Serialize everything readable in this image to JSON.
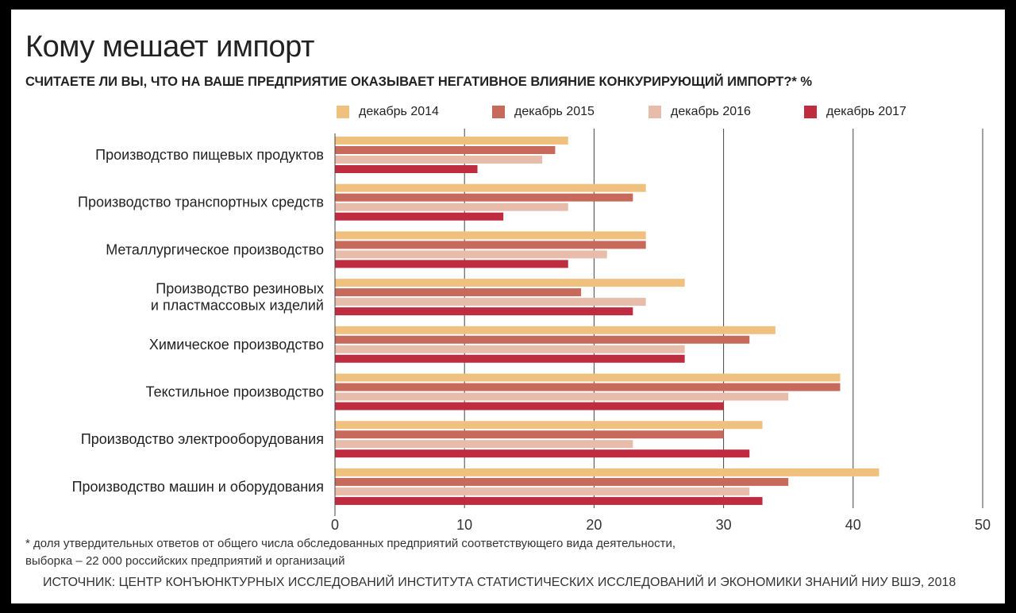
{
  "title": "Кому мешает импорт",
  "subtitle": "СЧИТАЕТЕ ЛИ ВЫ, ЧТО НА ВАШЕ ПРЕДПРИЯТИЕ ОКАЗЫВАЕТ НЕГАТИВНОЕ ВЛИЯНИЕ КОНКУРИРУЮЩИЙ ИМПОРТ?* %",
  "footnote_line1": "* доля утвердительных ответов от общего числа обследованных предприятий соответствующего вида деятельности,",
  "footnote_line2": "выборка – 22 000 российских предприятий и организаций",
  "source": "ИСТОЧНИК: ЦЕНТР КОНЪЮНКТУРНЫХ ИССЛЕДОВАНИЙ ИНСТИТУТА СТАТИСТИЧЕСКИХ ИССЛЕДОВАНИЙ И ЭКОНОМИКИ ЗНАНИЙ НИУ ВШЭ, 2018",
  "chart_data": {
    "type": "bar",
    "orientation": "horizontal",
    "title": "Кому мешает импорт",
    "subtitle": "СЧИТАЕТЕ ЛИ ВЫ, ЧТО НА ВАШЕ ПРЕДПРИЯТИЕ ОКАЗЫВАЕТ НЕГАТИВНОЕ ВЛИЯНИЕ КОНКУРИРУЮЩИЙ ИМПОРТ?* %",
    "categories": [
      [
        "Производство пищевых продуктов"
      ],
      [
        "Производство транспортных средств"
      ],
      [
        "Металлургическое производство"
      ],
      [
        "Производство резиновых",
        "и пластмассовых изделий"
      ],
      [
        "Химическое производство"
      ],
      [
        "Текстильное производство"
      ],
      [
        "Производство электрооборудования"
      ],
      [
        "Производство машин и оборудования"
      ]
    ],
    "series": [
      {
        "name": "декабрь 2014",
        "color": "#f0c07f",
        "values": [
          18,
          24,
          24,
          27,
          34,
          39,
          33,
          42
        ]
      },
      {
        "name": "декабрь 2015",
        "color": "#c76a5c",
        "values": [
          17,
          23,
          24,
          19,
          32,
          39,
          30,
          35
        ]
      },
      {
        "name": "декабрь 2016",
        "color": "#e8bcab",
        "values": [
          16,
          18,
          21,
          24,
          27,
          35,
          23,
          32
        ]
      },
      {
        "name": "декабрь 2017",
        "color": "#bf2c3f",
        "values": [
          11,
          13,
          18,
          23,
          27,
          30,
          32,
          33
        ]
      }
    ],
    "xlim": [
      0,
      50
    ],
    "xticks": [
      0,
      10,
      20,
      30,
      40,
      50
    ],
    "grid": true,
    "legend_position": "top"
  }
}
